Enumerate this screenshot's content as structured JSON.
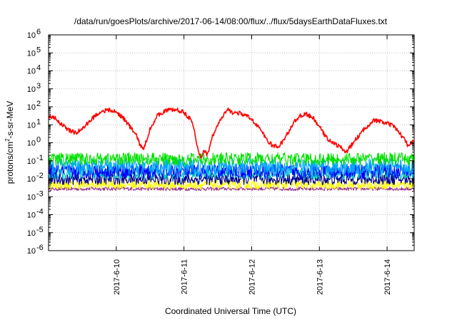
{
  "chart_data": {
    "type": "line",
    "title": "/data/run/goesPlots/archive/2017-06-14/08:00/flux/../flux/5daysEarthDataFluxes.txt",
    "xlabel": "Coordinated Universal Time (UTC)",
    "ylabel": {
      "base": "protons/cm",
      "sup": "2",
      "rest": "-s-sr-MeV"
    },
    "yscale": "log",
    "ylim": [
      1e-06,
      1000000.0
    ],
    "xlim": [
      9.0,
      14.4
    ],
    "grid": true,
    "y_ticks": [
      {
        "value": -6,
        "base": "10",
        "exp": "-6"
      },
      {
        "value": -5,
        "base": "10",
        "exp": "-5"
      },
      {
        "value": -4,
        "base": "10",
        "exp": "-4"
      },
      {
        "value": -3,
        "base": "10",
        "exp": "-3"
      },
      {
        "value": -2,
        "base": "10",
        "exp": "-2"
      },
      {
        "value": -1,
        "base": "10",
        "exp": "-1"
      },
      {
        "value": 0,
        "base": "10",
        "exp": "0"
      },
      {
        "value": 1,
        "base": "10",
        "exp": "1"
      },
      {
        "value": 2,
        "base": "10",
        "exp": "2"
      },
      {
        "value": 3,
        "base": "10",
        "exp": "3"
      },
      {
        "value": 4,
        "base": "10",
        "exp": "4"
      },
      {
        "value": 5,
        "base": "10",
        "exp": "5"
      },
      {
        "value": 6,
        "base": "10",
        "exp": "6"
      }
    ],
    "x_ticks": [
      {
        "value": 10,
        "label": "2017-6-10"
      },
      {
        "value": 11,
        "label": "2017-6-11"
      },
      {
        "value": 12,
        "label": "2017-6-12"
      },
      {
        "value": 13,
        "label": "2017-6-13"
      },
      {
        "value": 14,
        "label": "2017-6-14"
      }
    ],
    "series": [
      {
        "color": "#ff0000",
        "noise": 0.12,
        "points": [
          [
            9.0,
            30
          ],
          [
            9.1,
            22
          ],
          [
            9.2,
            10
          ],
          [
            9.3,
            5
          ],
          [
            9.4,
            3.5
          ],
          [
            9.5,
            6
          ],
          [
            9.6,
            15
          ],
          [
            9.7,
            35
          ],
          [
            9.8,
            60
          ],
          [
            9.9,
            65
          ],
          [
            10.0,
            50
          ],
          [
            10.1,
            25
          ],
          [
            10.2,
            8
          ],
          [
            10.3,
            2.5
          ],
          [
            10.35,
            0.8
          ],
          [
            10.4,
            0.4
          ],
          [
            10.45,
            1.5
          ],
          [
            10.5,
            6
          ],
          [
            10.6,
            30
          ],
          [
            10.7,
            55
          ],
          [
            10.8,
            70
          ],
          [
            10.9,
            65
          ],
          [
            11.0,
            50
          ],
          [
            11.1,
            20
          ],
          [
            11.15,
            5
          ],
          [
            11.2,
            0.5
          ],
          [
            11.25,
            0.15
          ],
          [
            11.3,
            0.4
          ],
          [
            11.35,
            0.2
          ],
          [
            11.4,
            1.5
          ],
          [
            11.5,
            10
          ],
          [
            11.6,
            40
          ],
          [
            11.65,
            70
          ],
          [
            11.7,
            50
          ],
          [
            11.8,
            45
          ],
          [
            11.9,
            35
          ],
          [
            12.0,
            20
          ],
          [
            12.1,
            8
          ],
          [
            12.2,
            2
          ],
          [
            12.3,
            0.7
          ],
          [
            12.4,
            0.6
          ],
          [
            12.5,
            2
          ],
          [
            12.6,
            10
          ],
          [
            12.7,
            30
          ],
          [
            12.8,
            40
          ],
          [
            12.9,
            25
          ],
          [
            13.0,
            8
          ],
          [
            13.1,
            2
          ],
          [
            13.2,
            1
          ],
          [
            13.3,
            0.6
          ],
          [
            13.4,
            0.3
          ],
          [
            13.5,
            1
          ],
          [
            13.6,
            3
          ],
          [
            13.7,
            8
          ],
          [
            13.8,
            18
          ],
          [
            13.9,
            15
          ],
          [
            14.0,
            12
          ],
          [
            14.1,
            8
          ],
          [
            14.2,
            3
          ],
          [
            14.3,
            0.8
          ],
          [
            14.4,
            1.2
          ]
        ]
      },
      {
        "color": "#00e000",
        "noise": 0.35,
        "points": [
          [
            9.0,
            0.12
          ],
          [
            10.0,
            0.13
          ],
          [
            11.0,
            0.12
          ],
          [
            12.0,
            0.13
          ],
          [
            13.0,
            0.12
          ],
          [
            14.0,
            0.13
          ],
          [
            14.4,
            0.12
          ]
        ]
      },
      {
        "color": "#00a8ff",
        "noise": 0.45,
        "points": [
          [
            9.0,
            0.045
          ],
          [
            10.0,
            0.05
          ],
          [
            11.0,
            0.045
          ],
          [
            12.0,
            0.05
          ],
          [
            13.0,
            0.045
          ],
          [
            14.0,
            0.05
          ],
          [
            14.4,
            0.045
          ]
        ]
      },
      {
        "color": "#0000ff",
        "noise": 0.4,
        "points": [
          [
            9.0,
            0.025
          ],
          [
            10.0,
            0.028
          ],
          [
            11.0,
            0.025
          ],
          [
            12.0,
            0.027
          ],
          [
            13.0,
            0.025
          ],
          [
            14.0,
            0.027
          ],
          [
            14.4,
            0.025
          ]
        ]
      },
      {
        "color": "#00c0c0",
        "noise": 0.3,
        "points": [
          [
            9.0,
            0.018
          ],
          [
            10.0,
            0.019
          ],
          [
            11.0,
            0.018
          ],
          [
            12.0,
            0.019
          ],
          [
            13.0,
            0.018
          ],
          [
            14.0,
            0.019
          ],
          [
            14.4,
            0.018
          ]
        ]
      },
      {
        "color": "#00008b",
        "noise": 0.3,
        "points": [
          [
            9.0,
            0.009
          ],
          [
            10.0,
            0.0095
          ],
          [
            11.0,
            0.009
          ],
          [
            12.0,
            0.0095
          ],
          [
            13.0,
            0.009
          ],
          [
            14.0,
            0.0095
          ],
          [
            14.4,
            0.009
          ]
        ]
      },
      {
        "color": "#ffff00",
        "noise": 0.25,
        "points": [
          [
            9.0,
            0.0045
          ],
          [
            10.0,
            0.0048
          ],
          [
            11.0,
            0.0045
          ],
          [
            12.0,
            0.0047
          ],
          [
            13.0,
            0.0045
          ],
          [
            14.0,
            0.0047
          ],
          [
            14.4,
            0.0045
          ]
        ]
      },
      {
        "color": "#993399",
        "noise": 0.1,
        "points": [
          [
            9.0,
            0.0027
          ],
          [
            10.0,
            0.0028
          ],
          [
            11.0,
            0.0027
          ],
          [
            12.0,
            0.0028
          ],
          [
            13.0,
            0.0027
          ],
          [
            14.0,
            0.0028
          ],
          [
            14.4,
            0.0027
          ]
        ]
      }
    ]
  }
}
